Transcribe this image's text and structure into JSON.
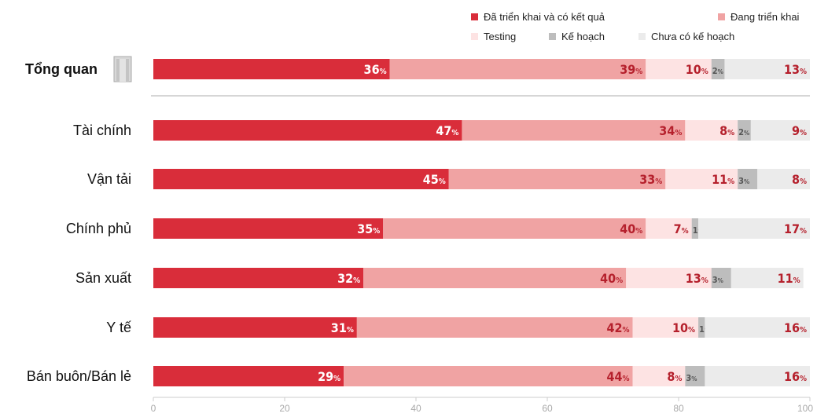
{
  "legend": [
    {
      "name": "Đã triển khai và có kết quả",
      "color": "#d92d3a"
    },
    {
      "name": "Đang triển khai",
      "color": "#f0a3a3"
    },
    {
      "name": "Testing",
      "color": "#fde3e3"
    },
    {
      "name": "Kế hoạch",
      "color": "#bdbdbd"
    },
    {
      "name": "Chưa có kế hoạch",
      "color": "#ebebeb"
    }
  ],
  "chart_data": {
    "type": "bar",
    "orientation": "horizontal",
    "stacked": true,
    "categories": [
      "Tổng quan",
      "Tài chính",
      "Vận tải",
      "Chính phủ",
      "Sản xuất",
      "Y tế",
      "Bán buôn/Bán lẻ"
    ],
    "series": [
      {
        "name": "Đã triển khai và có kết quả",
        "values": [
          36,
          47,
          45,
          35,
          32,
          31,
          29
        ],
        "color": "#d92d3a",
        "label_color": "#ffffff"
      },
      {
        "name": "Đang triển khai",
        "values": [
          39,
          34,
          33,
          40,
          40,
          42,
          44
        ],
        "color": "#f0a3a3",
        "label_color": "#b5202c"
      },
      {
        "name": "Testing",
        "values": [
          10,
          8,
          11,
          7,
          13,
          10,
          8
        ],
        "color": "#fde3e3",
        "label_color": "#b5202c"
      },
      {
        "name": "Kế hoạch",
        "values": [
          2,
          2,
          3,
          1,
          3,
          1,
          3
        ],
        "color": "#bdbdbd",
        "label_color": "#555555"
      },
      {
        "name": "Chưa có kế hoạch",
        "values": [
          13,
          9,
          8,
          17,
          11,
          16,
          16
        ],
        "color": "#ebebeb",
        "label_color": "#b5202c"
      }
    ],
    "x_ticks": [
      0,
      20,
      40,
      60,
      80,
      100
    ],
    "xlim": [
      0,
      100
    ],
    "unit_suffix": "%",
    "highlight_category": "Tổng quan",
    "legend_position": "top-right",
    "grid": false,
    "building_icon": "building-icon"
  }
}
